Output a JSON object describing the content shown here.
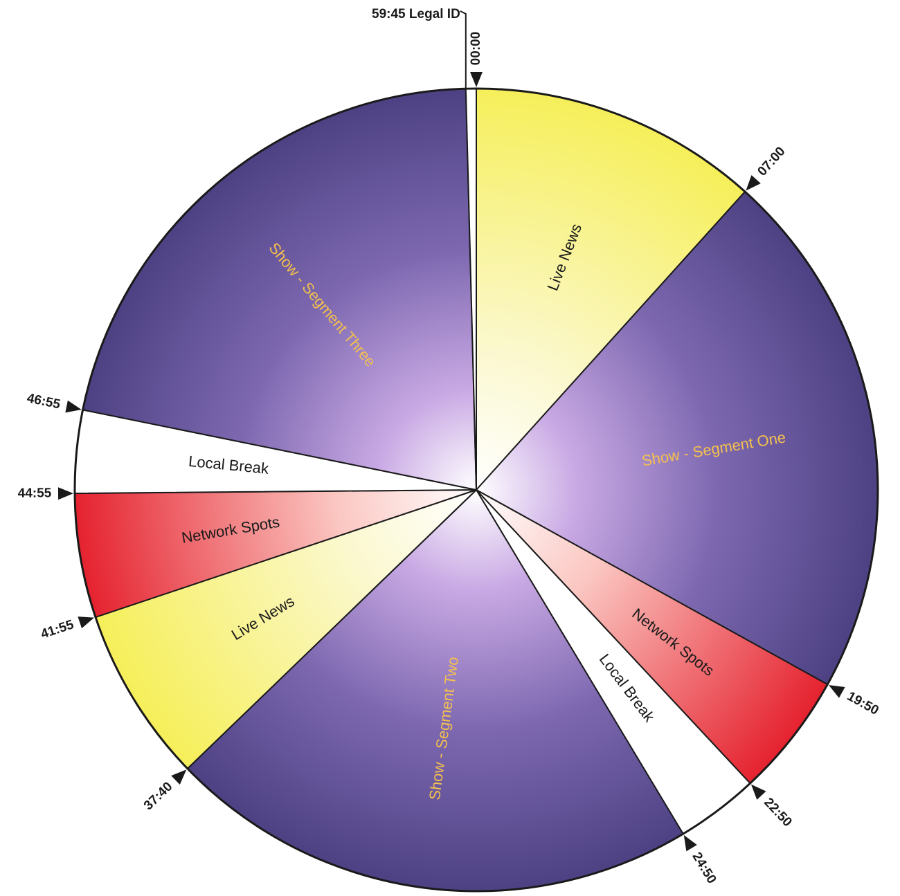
{
  "clock": {
    "total_minutes": 60,
    "legal_id": {
      "label": "59:45 Legal ID",
      "start_min": 59.75,
      "end_min": 60
    },
    "segments": [
      {
        "name": "Live News",
        "start_min": 0,
        "end_min": 7,
        "kind": "news",
        "color": "#f7f27a",
        "label_color": "#1a1a1a"
      },
      {
        "name": "Show - Segment One",
        "start_min": 7,
        "end_min": 19.8333,
        "kind": "show",
        "color": "#5a4d8c",
        "label_color": "#f4c04e"
      },
      {
        "name": "Network Spots",
        "start_min": 19.8333,
        "end_min": 22.8333,
        "kind": "spots",
        "color": "#e8313f",
        "label_color": "#1a1a1a"
      },
      {
        "name": "Local Break",
        "start_min": 22.8333,
        "end_min": 24.8333,
        "kind": "break",
        "color": "#ffffff",
        "label_color": "#1a1a1a"
      },
      {
        "name": "Show - Segment Two",
        "start_min": 24.8333,
        "end_min": 37.6667,
        "kind": "show",
        "color": "#5a4d8c",
        "label_color": "#f4c04e"
      },
      {
        "name": "Live News",
        "start_min": 37.6667,
        "end_min": 41.9167,
        "kind": "news",
        "color": "#f7f27a",
        "label_color": "#1a1a1a"
      },
      {
        "name": "Network Spots",
        "start_min": 41.9167,
        "end_min": 44.9167,
        "kind": "spots",
        "color": "#e8313f",
        "label_color": "#1a1a1a"
      },
      {
        "name": "Local Break",
        "start_min": 44.9167,
        "end_min": 46.9167,
        "kind": "break",
        "color": "#ffffff",
        "label_color": "#1a1a1a"
      },
      {
        "name": "Show - Segment Three",
        "start_min": 46.9167,
        "end_min": 59.75,
        "kind": "show",
        "color": "#5a4d8c",
        "label_color": "#f4c04e"
      }
    ],
    "ticks": [
      {
        "label": "00:00",
        "min": 0
      },
      {
        "label": "07:00",
        "min": 7
      },
      {
        "label": "19:50",
        "min": 19.8333
      },
      {
        "label": "22:50",
        "min": 22.8333
      },
      {
        "label": "24:50",
        "min": 24.8333
      },
      {
        "label": "37:40",
        "min": 37.6667
      },
      {
        "label": "41:55",
        "min": 41.9167
      },
      {
        "label": "44:55",
        "min": 44.9167
      },
      {
        "label": "46:55",
        "min": 46.9167
      }
    ]
  }
}
